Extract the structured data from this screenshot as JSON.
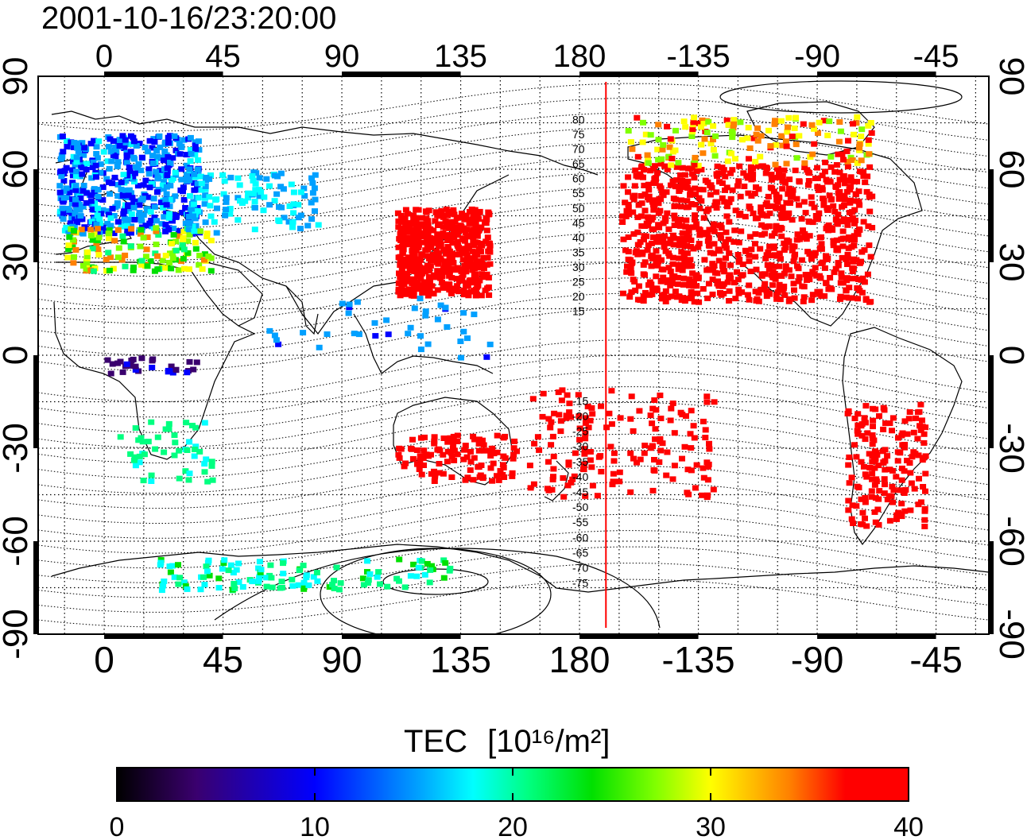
{
  "title": "2001-10-16/23:20:00",
  "map": {
    "x_ticks": [
      "0",
      "45",
      "90",
      "135",
      "180",
      "-135",
      "-90",
      "-45"
    ],
    "y_ticks": [
      "90",
      "60",
      "30",
      "0",
      "-30",
      "-60",
      "-90"
    ],
    "lon_range": [
      -25,
      335
    ],
    "lat_range": [
      -90,
      90
    ],
    "grid": "dotted, 15 degree spacing",
    "terminator_longitude": 190,
    "contour_labels_north": [
      "80",
      "75",
      "70",
      "65",
      "60",
      "55",
      "50",
      "45",
      "40",
      "35",
      "30",
      "25",
      "20",
      "15"
    ],
    "contour_labels_south": [
      "-15",
      "-20",
      "-25",
      "-30",
      "-35",
      "-40",
      "-45",
      "-50",
      "-55",
      "-60",
      "-65",
      "-70",
      "-75"
    ]
  },
  "colorbar": {
    "label": "TEC",
    "unit": "[10¹⁶/m²]",
    "ticks": [
      "0",
      "10",
      "20",
      "30",
      "40"
    ],
    "range": [
      0,
      40
    ],
    "colors": [
      "#000000",
      "#3a006e",
      "#0000ff",
      "#00a0ff",
      "#00ffff",
      "#00ff80",
      "#00e000",
      "#80ff00",
      "#ffff00",
      "#ff8000",
      "#ff0000"
    ]
  }
}
